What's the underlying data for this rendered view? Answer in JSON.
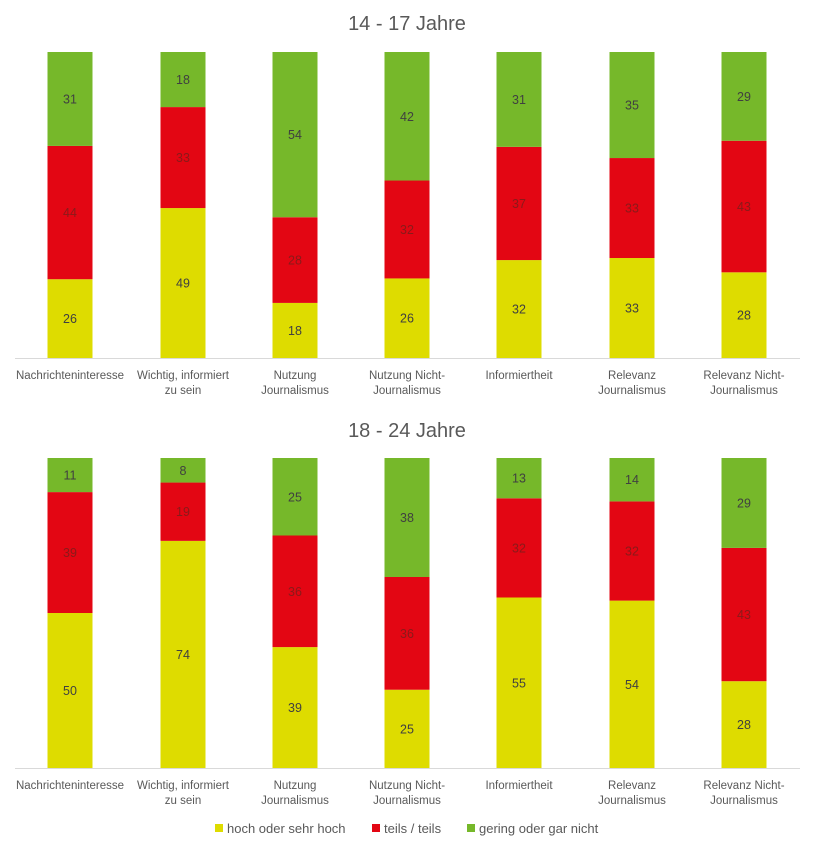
{
  "chart_data": [
    {
      "type": "bar",
      "stacked": true,
      "title": "14 - 17 Jahre",
      "categories": [
        [
          "Nachrichteninteresse"
        ],
        [
          "Wichtig, informiert",
          "zu sein"
        ],
        [
          "Nutzung",
          "Journalismus"
        ],
        [
          "Nutzung Nicht-",
          "Journalismus"
        ],
        [
          "Informiertheit"
        ],
        [
          "Relevanz",
          "Journalismus"
        ],
        [
          "Relevanz Nicht-",
          "Journalismus"
        ]
      ],
      "series": [
        {
          "name": "hoch oder sehr hoch",
          "color": "#dedc00",
          "values": [
            26,
            49,
            18,
            26,
            32,
            33,
            28
          ]
        },
        {
          "name": "teils / teils",
          "color": "#e30613",
          "values": [
            44,
            33,
            28,
            32,
            37,
            33,
            43
          ]
        },
        {
          "name": "gering oder gar nicht",
          "color": "#76b82a",
          "values": [
            31,
            18,
            54,
            42,
            31,
            35,
            29
          ]
        }
      ],
      "xlabel": "",
      "ylabel": "",
      "ylim": [
        0,
        100
      ],
      "grid": false,
      "data_labels": true
    },
    {
      "type": "bar",
      "stacked": true,
      "title": "18 - 24 Jahre",
      "categories": [
        [
          "Nachrichteninteresse"
        ],
        [
          "Wichtig, informiert",
          "zu sein"
        ],
        [
          "Nutzung",
          "Journalismus"
        ],
        [
          "Nutzung Nicht-",
          "Journalismus"
        ],
        [
          "Informiertheit"
        ],
        [
          "Relevanz",
          "Journalismus"
        ],
        [
          "Relevanz Nicht-",
          "Journalismus"
        ]
      ],
      "series": [
        {
          "name": "hoch oder sehr hoch",
          "color": "#dedc00",
          "values": [
            50,
            74,
            39,
            25,
            55,
            54,
            28
          ]
        },
        {
          "name": "teils / teils",
          "color": "#e30613",
          "values": [
            39,
            19,
            36,
            36,
            32,
            32,
            43
          ]
        },
        {
          "name": "gering oder gar nicht",
          "color": "#76b82a",
          "values": [
            11,
            8,
            25,
            38,
            13,
            14,
            29
          ]
        }
      ],
      "xlabel": "",
      "ylabel": "",
      "ylim": [
        0,
        100
      ],
      "grid": false,
      "data_labels": true
    }
  ],
  "legend": {
    "position": "bottom",
    "items": [
      {
        "label": "hoch oder sehr hoch",
        "color": "#dedc00"
      },
      {
        "label": "teils / teils",
        "color": "#e30613"
      },
      {
        "label": "gering oder gar nicht",
        "color": "#76b82a"
      }
    ]
  }
}
